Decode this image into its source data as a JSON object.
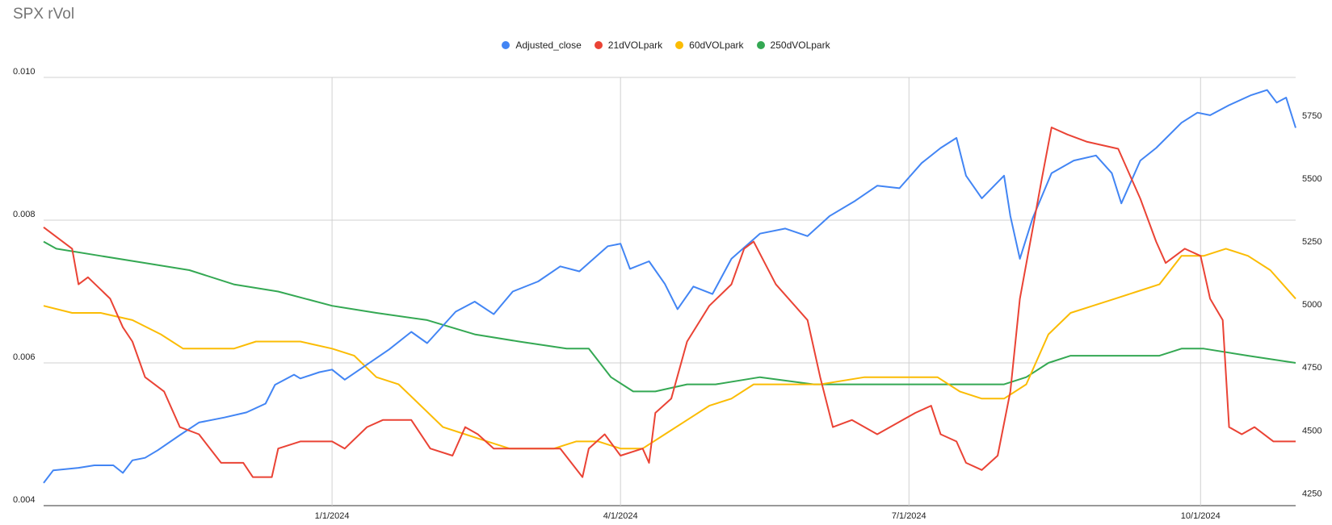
{
  "title": "SPX rVol",
  "colors": {
    "adjusted_close": "#4285F4",
    "vol21": "#EA4335",
    "vol60": "#FBBC04",
    "vol250": "#34A853"
  },
  "chart_data": {
    "type": "line",
    "title": "SPX rVol",
    "legend_position": "top",
    "grid": true,
    "x_ticks": [
      "1/1/2024",
      "4/1/2024",
      "7/1/2024",
      "10/1/2024"
    ],
    "x_tick_dates": [
      "2024-01-01",
      "2024-04-01",
      "2024-07-01",
      "2024-10-01"
    ],
    "x_range": [
      "2023-10-02",
      "2024-10-31"
    ],
    "left_axis": {
      "ticks": [
        "0.010",
        "0.008",
        "0.006",
        "0.004"
      ],
      "ylim": [
        0.004,
        0.01
      ]
    },
    "right_axis": {
      "ticks": [
        "5750",
        "5500",
        "5250",
        "5000",
        "4750",
        "4500",
        "4250"
      ],
      "ylim": [
        4200,
        5900
      ]
    },
    "series": [
      {
        "name": "Adjusted_close",
        "axis": "right",
        "color": "#4285F4",
        "points": [
          [
            "2023-10-02",
            4290
          ],
          [
            "2023-10-05",
            4340
          ],
          [
            "2023-10-13",
            4350
          ],
          [
            "2023-10-18",
            4360
          ],
          [
            "2023-10-24",
            4360
          ],
          [
            "2023-10-27",
            4330
          ],
          [
            "2023-10-30",
            4380
          ],
          [
            "2023-11-03",
            4390
          ],
          [
            "2023-11-07",
            4420
          ],
          [
            "2023-11-14",
            4480
          ],
          [
            "2023-11-20",
            4530
          ],
          [
            "2023-11-28",
            4550
          ],
          [
            "2023-12-05",
            4570
          ],
          [
            "2023-12-11",
            4605
          ],
          [
            "2023-12-14",
            4680
          ],
          [
            "2023-12-20",
            4720
          ],
          [
            "2023-12-22",
            4705
          ],
          [
            "2023-12-28",
            4730
          ],
          [
            "2024-01-01",
            4740
          ],
          [
            "2024-01-05",
            4700
          ],
          [
            "2024-01-12",
            4760
          ],
          [
            "2024-01-19",
            4820
          ],
          [
            "2024-01-26",
            4890
          ],
          [
            "2024-01-31",
            4845
          ],
          [
            "2024-02-09",
            4970
          ],
          [
            "2024-02-15",
            5010
          ],
          [
            "2024-02-21",
            4960
          ],
          [
            "2024-02-27",
            5050
          ],
          [
            "2024-03-06",
            5090
          ],
          [
            "2024-03-13",
            5150
          ],
          [
            "2024-03-19",
            5130
          ],
          [
            "2024-03-28",
            5230
          ],
          [
            "2024-04-01",
            5240
          ],
          [
            "2024-04-04",
            5140
          ],
          [
            "2024-04-10",
            5170
          ],
          [
            "2024-04-15",
            5080
          ],
          [
            "2024-04-19",
            4980
          ],
          [
            "2024-04-24",
            5070
          ],
          [
            "2024-04-30",
            5040
          ],
          [
            "2024-05-06",
            5180
          ],
          [
            "2024-05-15",
            5280
          ],
          [
            "2024-05-23",
            5300
          ],
          [
            "2024-05-30",
            5270
          ],
          [
            "2024-06-06",
            5350
          ],
          [
            "2024-06-14",
            5410
          ],
          [
            "2024-06-21",
            5470
          ],
          [
            "2024-06-28",
            5460
          ],
          [
            "2024-07-05",
            5560
          ],
          [
            "2024-07-11",
            5620
          ],
          [
            "2024-07-16",
            5660
          ],
          [
            "2024-07-19",
            5510
          ],
          [
            "2024-07-24",
            5420
          ],
          [
            "2024-07-31",
            5510
          ],
          [
            "2024-08-02",
            5350
          ],
          [
            "2024-08-05",
            5180
          ],
          [
            "2024-08-09",
            5340
          ],
          [
            "2024-08-15",
            5520
          ],
          [
            "2024-08-22",
            5570
          ],
          [
            "2024-08-29",
            5590
          ],
          [
            "2024-09-03",
            5520
          ],
          [
            "2024-09-06",
            5400
          ],
          [
            "2024-09-12",
            5570
          ],
          [
            "2024-09-17",
            5620
          ],
          [
            "2024-09-25",
            5720
          ],
          [
            "2024-09-30",
            5760
          ],
          [
            "2024-10-04",
            5750
          ],
          [
            "2024-10-10",
            5790
          ],
          [
            "2024-10-17",
            5830
          ],
          [
            "2024-10-22",
            5850
          ],
          [
            "2024-10-25",
            5800
          ],
          [
            "2024-10-28",
            5820
          ],
          [
            "2024-10-31",
            5700
          ]
        ]
      },
      {
        "name": "21dVOLpark",
        "axis": "left",
        "color": "#EA4335",
        "points": [
          [
            "2023-10-02",
            0.0079
          ],
          [
            "2023-10-11",
            0.0076
          ],
          [
            "2023-10-13",
            0.0071
          ],
          [
            "2023-10-16",
            0.0072
          ],
          [
            "2023-10-23",
            0.0069
          ],
          [
            "2023-10-27",
            0.0065
          ],
          [
            "2023-10-30",
            0.0063
          ],
          [
            "2023-11-03",
            0.0058
          ],
          [
            "2023-11-09",
            0.0056
          ],
          [
            "2023-11-14",
            0.0051
          ],
          [
            "2023-11-20",
            0.005
          ],
          [
            "2023-11-27",
            0.0046
          ],
          [
            "2023-12-04",
            0.0046
          ],
          [
            "2023-12-07",
            0.0044
          ],
          [
            "2023-12-13",
            0.0044
          ],
          [
            "2023-12-15",
            0.0048
          ],
          [
            "2023-12-22",
            0.0049
          ],
          [
            "2024-01-01",
            0.0049
          ],
          [
            "2024-01-05",
            0.0048
          ],
          [
            "2024-01-12",
            0.0051
          ],
          [
            "2024-01-17",
            0.0052
          ],
          [
            "2024-01-26",
            0.0052
          ],
          [
            "2024-02-01",
            0.0048
          ],
          [
            "2024-02-08",
            0.0047
          ],
          [
            "2024-02-12",
            0.0051
          ],
          [
            "2024-02-16",
            0.005
          ],
          [
            "2024-02-21",
            0.0048
          ],
          [
            "2024-02-28",
            0.0048
          ],
          [
            "2024-03-06",
            0.0048
          ],
          [
            "2024-03-13",
            0.0048
          ],
          [
            "2024-03-20",
            0.0044
          ],
          [
            "2024-03-22",
            0.0048
          ],
          [
            "2024-03-27",
            0.005
          ],
          [
            "2024-04-01",
            0.0047
          ],
          [
            "2024-04-08",
            0.0048
          ],
          [
            "2024-04-10",
            0.0046
          ],
          [
            "2024-04-12",
            0.0053
          ],
          [
            "2024-04-17",
            0.0055
          ],
          [
            "2024-04-22",
            0.0063
          ],
          [
            "2024-04-29",
            0.0068
          ],
          [
            "2024-05-06",
            0.0071
          ],
          [
            "2024-05-10",
            0.0076
          ],
          [
            "2024-05-13",
            0.0077
          ],
          [
            "2024-05-20",
            0.0071
          ],
          [
            "2024-05-30",
            0.0066
          ],
          [
            "2024-06-03",
            0.0058
          ],
          [
            "2024-06-07",
            0.0051
          ],
          [
            "2024-06-13",
            0.0052
          ],
          [
            "2024-06-21",
            0.005
          ],
          [
            "2024-07-03",
            0.0053
          ],
          [
            "2024-07-08",
            0.0054
          ],
          [
            "2024-07-11",
            0.005
          ],
          [
            "2024-07-16",
            0.0049
          ],
          [
            "2024-07-19",
            0.0046
          ],
          [
            "2024-07-24",
            0.0045
          ],
          [
            "2024-07-29",
            0.0047
          ],
          [
            "2024-08-02",
            0.0056
          ],
          [
            "2024-08-05",
            0.0069
          ],
          [
            "2024-08-12",
            0.0086
          ],
          [
            "2024-08-15",
            0.0093
          ],
          [
            "2024-08-20",
            0.0092
          ],
          [
            "2024-08-26",
            0.0091
          ],
          [
            "2024-09-05",
            0.009
          ],
          [
            "2024-09-12",
            0.0083
          ],
          [
            "2024-09-17",
            0.0077
          ],
          [
            "2024-09-20",
            0.0074
          ],
          [
            "2024-09-26",
            0.0076
          ],
          [
            "2024-10-01",
            0.0075
          ],
          [
            "2024-10-04",
            0.0069
          ],
          [
            "2024-10-08",
            0.0066
          ],
          [
            "2024-10-10",
            0.0051
          ],
          [
            "2024-10-14",
            0.005
          ],
          [
            "2024-10-18",
            0.0051
          ],
          [
            "2024-10-24",
            0.0049
          ],
          [
            "2024-10-31",
            0.0049
          ]
        ]
      },
      {
        "name": "60dVOLpark",
        "axis": "left",
        "color": "#FBBC04",
        "points": [
          [
            "2023-10-02",
            0.0068
          ],
          [
            "2023-10-11",
            0.0067
          ],
          [
            "2023-10-20",
            0.0067
          ],
          [
            "2023-10-30",
            0.0066
          ],
          [
            "2023-11-08",
            0.0064
          ],
          [
            "2023-11-15",
            0.0062
          ],
          [
            "2023-11-22",
            0.0062
          ],
          [
            "2023-12-01",
            0.0062
          ],
          [
            "2023-12-08",
            0.0063
          ],
          [
            "2023-12-15",
            0.0063
          ],
          [
            "2023-12-22",
            0.0063
          ],
          [
            "2024-01-01",
            0.0062
          ],
          [
            "2024-01-08",
            0.0061
          ],
          [
            "2024-01-15",
            0.0058
          ],
          [
            "2024-01-22",
            0.0057
          ],
          [
            "2024-01-29",
            0.0054
          ],
          [
            "2024-02-05",
            0.0051
          ],
          [
            "2024-02-12",
            0.005
          ],
          [
            "2024-02-19",
            0.0049
          ],
          [
            "2024-02-26",
            0.0048
          ],
          [
            "2024-03-04",
            0.0048
          ],
          [
            "2024-03-11",
            0.0048
          ],
          [
            "2024-03-18",
            0.0049
          ],
          [
            "2024-03-25",
            0.0049
          ],
          [
            "2024-04-01",
            0.0048
          ],
          [
            "2024-04-08",
            0.0048
          ],
          [
            "2024-04-15",
            0.005
          ],
          [
            "2024-04-22",
            0.0052
          ],
          [
            "2024-04-29",
            0.0054
          ],
          [
            "2024-05-06",
            0.0055
          ],
          [
            "2024-05-13",
            0.0057
          ],
          [
            "2024-05-20",
            0.0057
          ],
          [
            "2024-05-27",
            0.0057
          ],
          [
            "2024-06-03",
            0.0057
          ],
          [
            "2024-06-17",
            0.0058
          ],
          [
            "2024-07-01",
            0.0058
          ],
          [
            "2024-07-10",
            0.0058
          ],
          [
            "2024-07-17",
            0.0056
          ],
          [
            "2024-07-24",
            0.0055
          ],
          [
            "2024-07-31",
            0.0055
          ],
          [
            "2024-08-07",
            0.0057
          ],
          [
            "2024-08-14",
            0.0064
          ],
          [
            "2024-08-21",
            0.0067
          ],
          [
            "2024-08-28",
            0.0068
          ],
          [
            "2024-09-04",
            0.0069
          ],
          [
            "2024-09-11",
            0.007
          ],
          [
            "2024-09-18",
            0.0071
          ],
          [
            "2024-09-25",
            0.0075
          ],
          [
            "2024-10-02",
            0.0075
          ],
          [
            "2024-10-09",
            0.0076
          ],
          [
            "2024-10-16",
            0.0075
          ],
          [
            "2024-10-23",
            0.0073
          ],
          [
            "2024-10-31",
            0.0069
          ]
        ]
      },
      {
        "name": "250dVOLpark",
        "axis": "left",
        "color": "#34A853",
        "points": [
          [
            "2023-10-02",
            0.0077
          ],
          [
            "2023-10-06",
            0.0076
          ],
          [
            "2023-10-20",
            0.0075
          ],
          [
            "2023-11-03",
            0.0074
          ],
          [
            "2023-11-17",
            0.0073
          ],
          [
            "2023-12-01",
            0.0071
          ],
          [
            "2023-12-15",
            0.007
          ],
          [
            "2024-01-01",
            0.0068
          ],
          [
            "2024-01-15",
            0.0067
          ],
          [
            "2024-01-31",
            0.0066
          ],
          [
            "2024-02-15",
            0.0064
          ],
          [
            "2024-02-29",
            0.0063
          ],
          [
            "2024-03-15",
            0.0062
          ],
          [
            "2024-03-22",
            0.0062
          ],
          [
            "2024-03-29",
            0.0058
          ],
          [
            "2024-04-05",
            0.0056
          ],
          [
            "2024-04-12",
            0.0056
          ],
          [
            "2024-04-22",
            0.0057
          ],
          [
            "2024-05-01",
            0.0057
          ],
          [
            "2024-05-15",
            0.0058
          ],
          [
            "2024-06-01",
            0.0057
          ],
          [
            "2024-06-15",
            0.0057
          ],
          [
            "2024-07-01",
            0.0057
          ],
          [
            "2024-07-15",
            0.0057
          ],
          [
            "2024-07-31",
            0.0057
          ],
          [
            "2024-08-07",
            0.0058
          ],
          [
            "2024-08-14",
            0.006
          ],
          [
            "2024-08-21",
            0.0061
          ],
          [
            "2024-09-04",
            0.0061
          ],
          [
            "2024-09-18",
            0.0061
          ],
          [
            "2024-09-25",
            0.0062
          ],
          [
            "2024-10-02",
            0.0062
          ],
          [
            "2024-10-16",
            0.0061
          ],
          [
            "2024-10-31",
            0.006
          ]
        ]
      }
    ]
  }
}
